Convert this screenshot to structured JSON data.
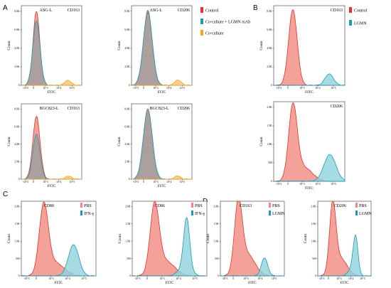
{
  "panel_letters": [
    "A",
    "B",
    "C",
    "D"
  ],
  "legends": {
    "A": [
      {
        "label": "Control",
        "color": "#e8312c"
      },
      {
        "label": "Co-culture + LGMN mAb",
        "color": "#1a9bb5"
      },
      {
        "label": "Co-culture",
        "color": "#f2a623"
      }
    ],
    "B": [
      {
        "label": "Control",
        "color": "#e8312c"
      },
      {
        "label": "LGMN",
        "color": "#1a9bb5"
      }
    ]
  },
  "colors": {
    "control_fill": "#f08a80",
    "control_line": "#e8312c",
    "mab_fill": "#9fa0a0",
    "mab_line": "#1a9bb5",
    "coculture_fill": "#f7c46c",
    "coculture_line": "#f2a623",
    "treat_fill": "#8fd3dd",
    "treat_line": "#1a9bb5"
  },
  "chart_data": [
    {
      "id": "A1",
      "type": "area",
      "xlabel": "FITC",
      "ylabel": "Count",
      "markers": [
        "ASG-L",
        "CD163"
      ],
      "y_ticks": [
        "0",
        "2.0K",
        "4.0K",
        "6.0K",
        "8.0K"
      ],
      "x_ticks": [
        "-10^3",
        "0",
        "10^3",
        "10^4",
        "10^5"
      ],
      "ylim": [
        0,
        8400
      ],
      "series": [
        {
          "style": "control",
          "peaks": [
            {
              "x": 0.25,
              "h": 7800,
              "w": 0.055
            }
          ]
        },
        {
          "style": "mab",
          "peaks": [
            {
              "x": 0.25,
              "h": 6800,
              "w": 0.06
            }
          ]
        },
        {
          "style": "coculture",
          "peaks": [
            {
              "x": 0.77,
              "h": 520,
              "w": 0.055
            }
          ]
        }
      ]
    },
    {
      "id": "A2",
      "type": "area",
      "xlabel": "FITC",
      "ylabel": "Count",
      "markers": [
        "ASG-L",
        "CD206"
      ],
      "y_ticks": [
        "0",
        "2.0K",
        "4.0K",
        "6.0K",
        "8.0K"
      ],
      "x_ticks": [
        "-10^3",
        "0",
        "10^3",
        "10^4",
        "10^5"
      ],
      "ylim": [
        0,
        8400
      ],
      "series": [
        {
          "style": "control",
          "peaks": [
            {
              "x": 0.27,
              "h": 7900,
              "w": 0.07
            }
          ]
        },
        {
          "style": "mab",
          "peaks": [
            {
              "x": 0.27,
              "h": 7700,
              "w": 0.075
            }
          ]
        },
        {
          "style": "coculture",
          "peaks": [
            {
              "x": 0.77,
              "h": 560,
              "w": 0.055
            }
          ]
        }
      ]
    },
    {
      "id": "A3",
      "type": "area",
      "xlabel": "FITC",
      "ylabel": "Count",
      "markers": [
        "BGC823-L",
        "CD163"
      ],
      "y_ticks": [
        "0",
        "2.0K",
        "4.0K",
        "6.0K",
        "8.0K"
      ],
      "x_ticks": [
        "-10^3",
        "0",
        "10^3",
        "10^4",
        "10^5"
      ],
      "ylim": [
        0,
        8400
      ],
      "series": [
        {
          "style": "control",
          "peaks": [
            {
              "x": 0.25,
              "h": 7000,
              "w": 0.06
            }
          ]
        },
        {
          "style": "mab",
          "peaks": [
            {
              "x": 0.25,
              "h": 5000,
              "w": 0.06
            }
          ]
        },
        {
          "style": "coculture",
          "peaks": [
            {
              "x": 0.78,
              "h": 350,
              "w": 0.05
            }
          ]
        }
      ]
    },
    {
      "id": "A4",
      "type": "area",
      "xlabel": "FITC",
      "ylabel": "Count",
      "markers": [
        "BGC823-L",
        "CD206"
      ],
      "y_ticks": [
        "0",
        "2.0K",
        "4.0K",
        "6.0K",
        "8.0K"
      ],
      "x_ticks": [
        "-10^3",
        "0",
        "10^3",
        "10^4",
        "10^5"
      ],
      "ylim": [
        0,
        8400
      ],
      "series": [
        {
          "style": "control",
          "peaks": [
            {
              "x": 0.27,
              "h": 7800,
              "w": 0.07
            }
          ]
        },
        {
          "style": "mab",
          "peaks": [
            {
              "x": 0.27,
              "h": 7800,
              "w": 0.075
            }
          ]
        },
        {
          "style": "coculture",
          "peaks": [
            {
              "x": 0.76,
              "h": 370,
              "w": 0.05
            }
          ]
        }
      ]
    },
    {
      "id": "B1",
      "type": "area",
      "xlabel": "FITC",
      "ylabel": "Count",
      "markers": [
        "",
        "CD163"
      ],
      "y_ticks": [
        "0",
        "2.0K",
        "4.0K",
        "6.0K",
        "8.0K"
      ],
      "x_ticks": [
        "-10^3",
        "0",
        "10^3",
        "10^4",
        "10^5"
      ],
      "ylim": [
        0,
        8400
      ],
      "series": [
        {
          "style": "control",
          "peaks": [
            {
              "x": 0.27,
              "h": 8000,
              "w": 0.06
            }
          ]
        },
        {
          "style": "treat",
          "peaks": [
            {
              "x": 0.78,
              "h": 1200,
              "w": 0.06
            }
          ]
        }
      ]
    },
    {
      "id": "B2",
      "type": "area",
      "xlabel": "FITC",
      "ylabel": "Count",
      "markers": [
        "",
        "CD206"
      ],
      "y_ticks": [
        "0",
        "500",
        "1.0K",
        "1.5K",
        "2.0K"
      ],
      "x_ticks": [
        "-10^3",
        "0",
        "10^3",
        "10^4",
        "10^5"
      ],
      "ylim": [
        0,
        2150
      ],
      "series": [
        {
          "style": "control",
          "peaks": [
            {
              "x": 0.27,
              "h": 1950,
              "w": 0.06
            },
            {
              "x": 0.42,
              "h": 380,
              "w": 0.12
            }
          ]
        },
        {
          "style": "treat",
          "peaks": [
            {
              "x": 0.79,
              "h": 720,
              "w": 0.085
            }
          ]
        }
      ]
    },
    {
      "id": "C1",
      "type": "area",
      "xlabel": "FITC",
      "ylabel": "Count",
      "markers": [
        "CD80",
        ""
      ],
      "legend": [
        {
          "label": "PBS",
          "color": "#f08a80"
        },
        {
          "label": "IFN-γ",
          "color": "#1a9bb5"
        }
      ],
      "y_ticks": [
        "0",
        "500",
        "1.0K",
        "1.5K",
        "2.0K"
      ],
      "x_ticks": [
        "-10^3",
        "0",
        "10^3",
        "10^4",
        "10^5"
      ],
      "ylim": [
        0,
        2150
      ],
      "series": [
        {
          "style": "control",
          "peaks": [
            {
              "x": 0.3,
              "h": 1950,
              "w": 0.06
            },
            {
              "x": 0.45,
              "h": 380,
              "w": 0.12
            }
          ]
        },
        {
          "style": "treat",
          "peaks": [
            {
              "x": 0.7,
              "h": 900,
              "w": 0.07
            }
          ]
        }
      ]
    },
    {
      "id": "C2",
      "type": "area",
      "xlabel": "FITC",
      "ylabel": "Count",
      "markers": [
        "CD86",
        ""
      ],
      "legend": [
        {
          "label": "PBS",
          "color": "#f08a80"
        },
        {
          "label": "IFN-γ",
          "color": "#1a9bb5"
        }
      ],
      "y_ticks": [
        "0",
        "500",
        "1.0K",
        "1.5K",
        "2.0K"
      ],
      "x_ticks": [
        "-10^3",
        "0",
        "10^3",
        "10^4",
        "10^5"
      ],
      "ylim": [
        0,
        2150
      ],
      "series": [
        {
          "style": "control",
          "peaks": [
            {
              "x": 0.3,
              "h": 1950,
              "w": 0.06
            },
            {
              "x": 0.45,
              "h": 420,
              "w": 0.12
            }
          ]
        },
        {
          "style": "treat",
          "peaks": [
            {
              "x": 0.73,
              "h": 1450,
              "w": 0.04
            },
            {
              "x": 0.7,
              "h": 250,
              "w": 0.08
            }
          ]
        }
      ]
    },
    {
      "id": "D1",
      "type": "area",
      "xlabel": "FITC",
      "ylabel": "Count",
      "markers": [
        "CD163",
        ""
      ],
      "legend": [
        {
          "label": "PBS",
          "color": "#f08a80"
        },
        {
          "label": "LGMN",
          "color": "#1a9bb5"
        }
      ],
      "y_ticks": [
        "0",
        "500",
        "1.0K",
        "1.5K",
        "2.0K"
      ],
      "x_ticks": [
        "-10^3",
        "0",
        "10^3",
        "10^4",
        "10^5"
      ],
      "ylim": [
        0,
        2150
      ],
      "series": [
        {
          "style": "control",
          "peaks": [
            {
              "x": 0.28,
              "h": 1950,
              "w": 0.06
            },
            {
              "x": 0.42,
              "h": 620,
              "w": 0.12
            }
          ]
        },
        {
          "style": "treat",
          "peaks": [
            {
              "x": 0.69,
              "h": 520,
              "w": 0.05
            }
          ]
        }
      ]
    },
    {
      "id": "D2",
      "type": "area",
      "xlabel": "FITC",
      "ylabel": "Count",
      "markers": [
        "CD206",
        ""
      ],
      "legend": [
        {
          "label": "PBS",
          "color": "#f08a80"
        },
        {
          "label": "LGMN",
          "color": "#1a9bb5"
        }
      ],
      "y_ticks": [
        "0",
        "500",
        "1.0K",
        "1.5K",
        "2.0K"
      ],
      "x_ticks": [
        "-10^3",
        "0",
        "10^3",
        "10^4",
        "10^5"
      ],
      "ylim": [
        0,
        2150
      ],
      "series": [
        {
          "style": "control",
          "peaks": [
            {
              "x": 0.28,
              "h": 1950,
              "w": 0.06
            },
            {
              "x": 0.43,
              "h": 500,
              "w": 0.12
            }
          ]
        },
        {
          "style": "treat",
          "peaks": [
            {
              "x": 0.71,
              "h": 1050,
              "w": 0.045
            },
            {
              "x": 0.64,
              "h": 200,
              "w": 0.07
            }
          ]
        }
      ]
    }
  ]
}
